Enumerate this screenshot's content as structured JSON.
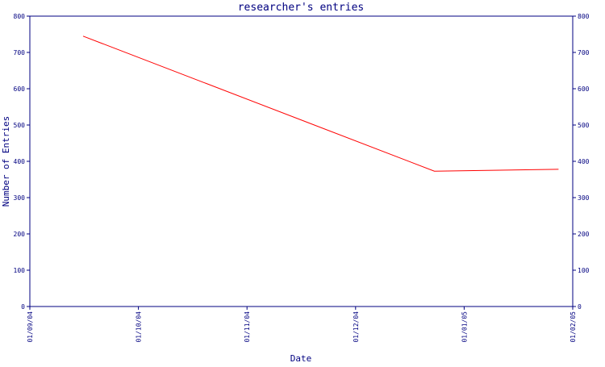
{
  "chart_data": {
    "type": "line",
    "title": "researcher's entries",
    "xlabel": "Date",
    "ylabel": "Number of Entries",
    "x_ticks": [
      "01/09/04",
      "01/10/04",
      "01/11/04",
      "01/12/04",
      "01/01/05",
      "01/02/05"
    ],
    "y_ticks": [
      "0",
      "100",
      "200",
      "300",
      "400",
      "500",
      "600",
      "700",
      "800"
    ],
    "ylim": [
      0,
      800
    ],
    "xlim": [
      "2004-09-01",
      "2005-02-01"
    ],
    "right_axis": true,
    "grid": false,
    "series": [
      {
        "name": "",
        "color": "#ff0000",
        "x": [
          "2004-09-16",
          "2004-12-24",
          "2005-01-28"
        ],
        "values": [
          745,
          373,
          378
        ]
      }
    ]
  },
  "colors": {
    "axis": "#000080",
    "line": "#ff0000",
    "background": "#ffffff"
  }
}
